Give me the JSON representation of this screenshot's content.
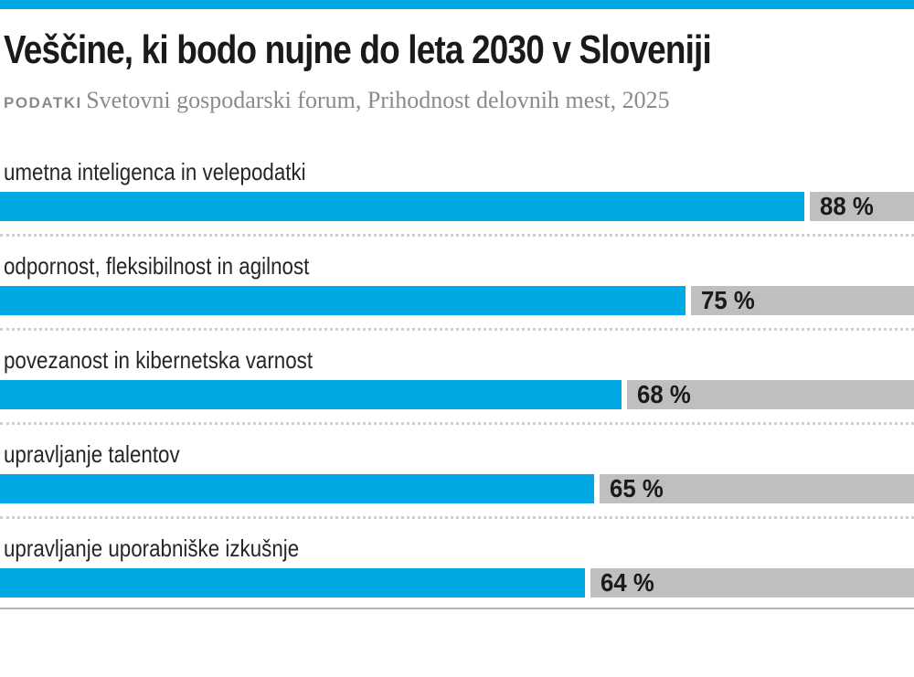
{
  "colors": {
    "accent_blue": "#00a9e4",
    "track_gray": "#bfbfbf",
    "title_black": "#1a1a1a",
    "label_dark": "#262626",
    "muted_gray": "#8a8a8a",
    "divider_dotted": "#cfcfcf",
    "divider_solid": "#b3b3b3"
  },
  "header": {
    "title": "Veščine, ki bodo nujne do leta 2030 v Sloveniji",
    "source_label": "PODATKI",
    "source_text": "Svetovni gospodarski forum, Prihodnost delovnih mest, 2025"
  },
  "chart_data": {
    "type": "bar",
    "orientation": "horizontal",
    "title": "Veščine, ki bodo nujne do leta 2030 v Sloveniji",
    "source": "PODATKI Svetovni gospodarski forum, Prihodnost delovnih mest, 2025",
    "unit": "%",
    "xlim": [
      0,
      100
    ],
    "grid": false,
    "legend": "none",
    "categories": [
      "umetna inteligenca in velepodatki",
      "odpornost, fleksibilnost in agilnost",
      "povezanost in kibernetska varnost",
      "upravljanje talentov",
      "upravljanje uporabniške izkušnje"
    ],
    "values": [
      88,
      75,
      68,
      65,
      64
    ],
    "value_labels": [
      "88 %",
      "75 %",
      "68 %",
      "65 %",
      "64 %"
    ]
  }
}
